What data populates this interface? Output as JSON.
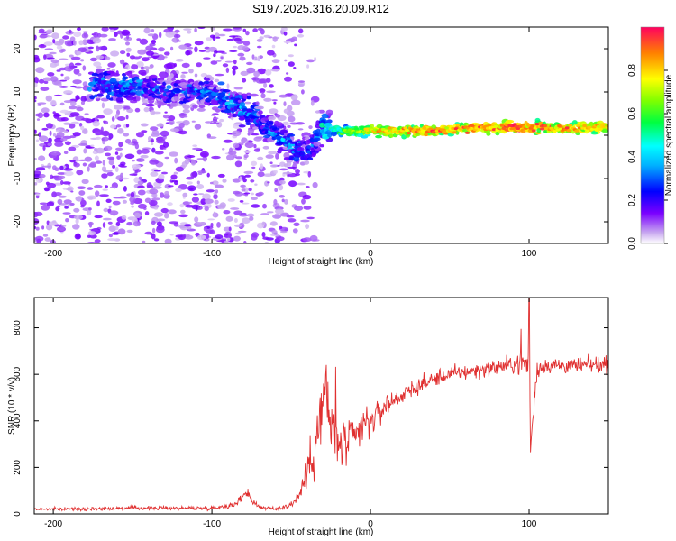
{
  "title": "S197.2025.316.20.09.R12",
  "chart_data": [
    {
      "type": "heatmap",
      "xlabel": "Height of straight line (km)",
      "ylabel": "Frequency (Hz)",
      "xlim": [
        -212,
        150
      ],
      "ylim": [
        -25,
        25
      ],
      "x_ticks": [
        "-200",
        "-100",
        "0",
        "100"
      ],
      "x_tick_values": [
        -200,
        -100,
        0,
        100
      ],
      "y_ticks": [
        "20",
        "10",
        "0",
        "-10",
        "-20"
      ],
      "y_tick_values": [
        20,
        10,
        0,
        -10,
        -20
      ],
      "ridge": [
        {
          "x": -170,
          "y": 12,
          "amp": 0.28
        },
        {
          "x": -160,
          "y": 11,
          "amp": 0.3
        },
        {
          "x": -150,
          "y": 11,
          "amp": 0.32
        },
        {
          "x": -140,
          "y": 11,
          "amp": 0.25
        },
        {
          "x": -120,
          "y": 10,
          "amp": 0.2
        },
        {
          "x": -105,
          "y": 10,
          "amp": 0.26
        },
        {
          "x": -95,
          "y": 9,
          "amp": 0.28
        },
        {
          "x": -85,
          "y": 7,
          "amp": 0.32
        },
        {
          "x": -75,
          "y": 5,
          "amp": 0.3
        },
        {
          "x": -65,
          "y": 2,
          "amp": 0.28
        },
        {
          "x": -55,
          "y": -1,
          "amp": 0.3
        },
        {
          "x": -45,
          "y": -4,
          "amp": 0.28
        },
        {
          "x": -38,
          "y": -3,
          "amp": 0.25
        },
        {
          "x": -30,
          "y": 2,
          "amp": 0.35
        },
        {
          "x": -20,
          "y": 1,
          "amp": 0.55
        },
        {
          "x": 0,
          "y": 1,
          "amp": 0.75
        },
        {
          "x": 30,
          "y": 1,
          "amp": 0.85
        },
        {
          "x": 60,
          "y": 1.5,
          "amp": 0.85
        },
        {
          "x": 90,
          "y": 2,
          "amp": 0.88
        },
        {
          "x": 120,
          "y": 1.5,
          "amp": 0.85
        },
        {
          "x": 150,
          "y": 2,
          "amp": 0.8
        }
      ],
      "colorbar": {
        "label": "Normalized spectral amplitude",
        "ticks": [
          "0.0",
          "0.2",
          "0.4",
          "0.6",
          "0.8"
        ],
        "tick_values": [
          0.0,
          0.2,
          0.4,
          0.6,
          0.8
        ],
        "range": [
          0,
          1
        ]
      }
    },
    {
      "type": "line",
      "xlabel": "Height of straight line (km)",
      "ylabel": "SNR (10 * v/v)",
      "xlim": [
        -212,
        150
      ],
      "ylim": [
        0,
        930
      ],
      "x_ticks": [
        "-200",
        "-100",
        "0",
        "100"
      ],
      "x_tick_values": [
        -200,
        -100,
        0,
        100
      ],
      "y_ticks": [
        "0",
        "200",
        "400",
        "600",
        "800"
      ],
      "y_tick_values": [
        0,
        200,
        400,
        600,
        800
      ],
      "series": [
        {
          "name": "SNR",
          "color": "#e03030",
          "x": [
            -212,
            -180,
            -150,
            -120,
            -100,
            -85,
            -78,
            -75,
            -70,
            -60,
            -50,
            -45,
            -40,
            -35,
            -30,
            -28,
            -25,
            -22,
            -20,
            -15,
            -10,
            -5,
            0,
            5,
            10,
            15,
            20,
            30,
            40,
            50,
            60,
            80,
            95,
            100,
            101,
            105,
            110,
            130,
            150
          ],
          "y": [
            20,
            22,
            25,
            25,
            25,
            40,
            100,
            60,
            30,
            20,
            40,
            80,
            180,
            300,
            460,
            520,
            380,
            320,
            300,
            300,
            320,
            380,
            400,
            430,
            470,
            490,
            510,
            550,
            580,
            600,
            610,
            630,
            650,
            640,
            290,
            620,
            640,
            635,
            645
          ],
          "noise": [
            5,
            6,
            7,
            7,
            7,
            10,
            20,
            15,
            8,
            6,
            15,
            30,
            60,
            120,
            150,
            150,
            130,
            110,
            100,
            80,
            80,
            70,
            60,
            50,
            40,
            35,
            30,
            30,
            28,
            28,
            28,
            28,
            40,
            50,
            50,
            35,
            30,
            28,
            28
          ],
          "spikes": [
            {
              "x": -28,
              "y": 640
            },
            {
              "x": -22,
              "y": 632
            },
            {
              "x": 95,
              "y": 795
            },
            {
              "x": 100,
              "y": 925
            },
            {
              "x": 101,
              "y": 265
            }
          ]
        }
      ]
    }
  ]
}
